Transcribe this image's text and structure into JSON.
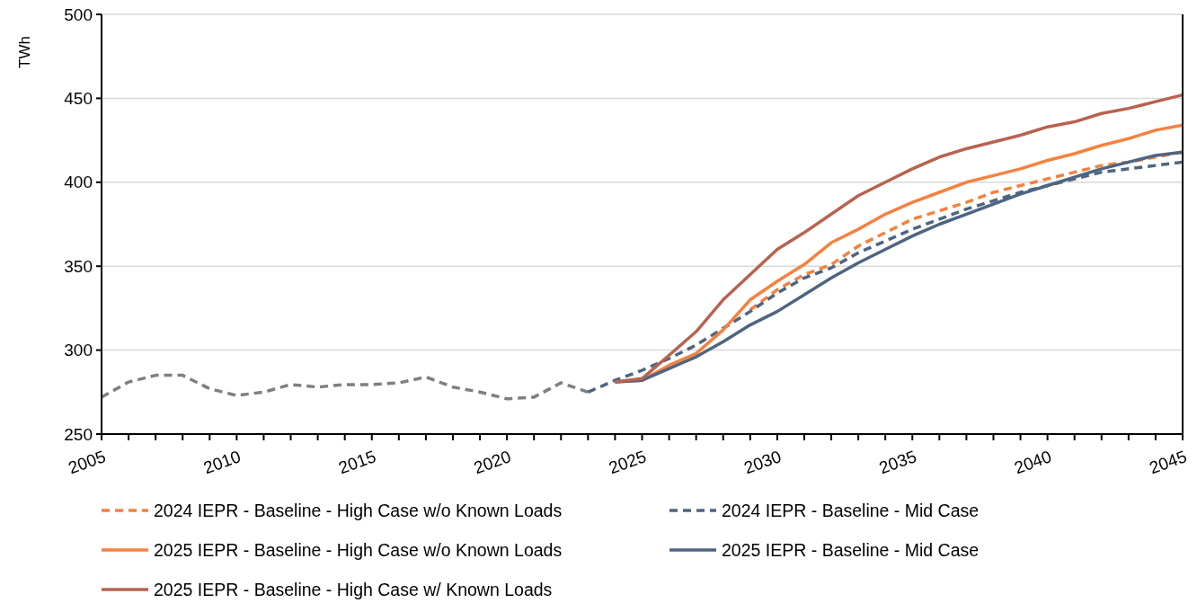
{
  "chart_data": {
    "type": "line",
    "ylabel": "TWh",
    "xlim": [
      2005,
      2045
    ],
    "xticks": [
      2005,
      {
        "value": 2006,
        "label": null
      },
      {
        "value": 2007,
        "label": null
      },
      {
        "value": 2008,
        "label": null
      },
      {
        "value": 2009,
        "label": null
      },
      2010,
      {
        "value": 2011,
        "label": null
      },
      {
        "value": 2012,
        "label": null
      },
      {
        "value": 2013,
        "label": null
      },
      {
        "value": 2014,
        "label": null
      },
      2015,
      {
        "value": 2016,
        "label": null
      },
      {
        "value": 2017,
        "label": null
      },
      {
        "value": 2018,
        "label": null
      },
      {
        "value": 2019,
        "label": null
      },
      2020,
      {
        "value": 2021,
        "label": null
      },
      {
        "value": 2022,
        "label": null
      },
      {
        "value": 2023,
        "label": null
      },
      {
        "value": 2024,
        "label": null
      },
      2025,
      {
        "value": 2026,
        "label": null
      },
      {
        "value": 2027,
        "label": null
      },
      {
        "value": 2028,
        "label": null
      },
      {
        "value": 2029,
        "label": null
      },
      2030,
      {
        "value": 2031,
        "label": null
      },
      {
        "value": 2032,
        "label": null
      },
      {
        "value": 2033,
        "label": null
      },
      {
        "value": 2034,
        "label": null
      },
      2035,
      {
        "value": 2036,
        "label": null
      },
      {
        "value": 2037,
        "label": null
      },
      {
        "value": 2038,
        "label": null
      },
      {
        "value": 2039,
        "label": null
      },
      2040,
      {
        "value": 2041,
        "label": null
      },
      {
        "value": 2042,
        "label": null
      },
      {
        "value": 2043,
        "label": null
      },
      {
        "value": 2044,
        "label": null
      },
      2045
    ],
    "ylim": [
      250,
      500
    ],
    "yticks": [
      250,
      300,
      350,
      400,
      450,
      500
    ],
    "grid": "y",
    "legend": "bottom",
    "series": [
      {
        "color": "#7f7f7f",
        "line_style": "dashed",
        "x": [
          2005,
          2006,
          2007,
          2008,
          2009,
          2010,
          2011,
          2012,
          2013,
          2014,
          2015,
          2016,
          2017,
          2018,
          2019,
          2020,
          2021,
          2022,
          2023
        ],
        "values": [
          272,
          281,
          285,
          285,
          277,
          273,
          275,
          279.5,
          278,
          279.5,
          279.5,
          280.5,
          284,
          278,
          275,
          271,
          272,
          280.5,
          275
        ]
      },
      {
        "name": "2024 IEPR - Baseline - High Case w/o Known Loads",
        "color": "#f4823f",
        "line_style": "dashed",
        "x": [
          2029,
          2030,
          2031,
          2032,
          2033,
          2034,
          2035,
          2036,
          2037,
          2038,
          2039,
          2040,
          2041,
          2042,
          2043,
          2044,
          2045
        ],
        "values": [
          324,
          336,
          345,
          351,
          362,
          370,
          378,
          383,
          388,
          394,
          398,
          402,
          406,
          410,
          412,
          415,
          418
        ]
      },
      {
        "name": "2024 IEPR - Baseline - Mid Case",
        "color": "#4d6580",
        "line_style": "dashed",
        "x": [
          2023,
          2024,
          2025,
          2026,
          2027,
          2028,
          2029,
          2030,
          2031,
          2032,
          2033,
          2034,
          2035,
          2036,
          2037,
          2038,
          2039,
          2040,
          2041,
          2042,
          2043,
          2044,
          2045
        ],
        "values": [
          275,
          282,
          288,
          295,
          303,
          313,
          323,
          334,
          343,
          349,
          358,
          365,
          372,
          378,
          384,
          389,
          394,
          398,
          402,
          406,
          408,
          410,
          412
        ]
      },
      {
        "name": "2025 IEPR - Baseline - High Case w/o Known Loads",
        "color": "#f4823f",
        "line_style": "solid",
        "x": [
          2024,
          2025,
          2026,
          2027,
          2028,
          2029,
          2030,
          2031,
          2032,
          2033,
          2034,
          2035,
          2036,
          2037,
          2038,
          2039,
          2040,
          2041,
          2042,
          2043,
          2044,
          2045
        ],
        "values": [
          281,
          282,
          291,
          298,
          312,
          330,
          341,
          351,
          364,
          372,
          381,
          388,
          394,
          400,
          404,
          408,
          413,
          417,
          422,
          426,
          431,
          434
        ]
      },
      {
        "name": "2025 IEPR - Baseline - Mid Case",
        "color": "#4d6580",
        "line_style": "solid",
        "x": [
          2024,
          2025,
          2026,
          2027,
          2028,
          2029,
          2030,
          2031,
          2032,
          2033,
          2034,
          2035,
          2036,
          2037,
          2038,
          2039,
          2040,
          2041,
          2042,
          2043,
          2044,
          2045
        ],
        "values": [
          281,
          282,
          289,
          296,
          305,
          315,
          323,
          333,
          343,
          352,
          360,
          368,
          375,
          381,
          387,
          393,
          398,
          403,
          408,
          412,
          416,
          418
        ]
      },
      {
        "name": "2025 IEPR - Baseline - High Case w/ Known Loads",
        "color": "#b7634f",
        "line_style": "solid",
        "x": [
          2024,
          2025,
          2026,
          2027,
          2028,
          2029,
          2030,
          2031,
          2032,
          2033,
          2034,
          2035,
          2036,
          2037,
          2038,
          2039,
          2040,
          2041,
          2042,
          2043,
          2044,
          2045
        ],
        "values": [
          281,
          283,
          297,
          311,
          330,
          345,
          360,
          370,
          381,
          392,
          400,
          408,
          415,
          420,
          424,
          428,
          433,
          436,
          441,
          444,
          448,
          452
        ]
      }
    ]
  }
}
